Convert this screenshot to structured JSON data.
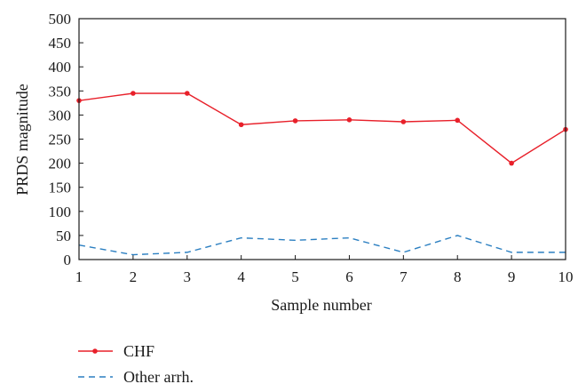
{
  "chart_data": {
    "type": "line",
    "x": [
      1,
      2,
      3,
      4,
      5,
      6,
      7,
      8,
      9,
      10
    ],
    "xlabel": "Sample number",
    "ylabel": "PRDS magnitude",
    "xlim": [
      1,
      10
    ],
    "ylim": [
      0,
      500
    ],
    "xticks": [
      "1",
      "2",
      "3",
      "4",
      "5",
      "6",
      "7",
      "8",
      "9",
      "10"
    ],
    "yticks": [
      "0",
      "50",
      "100",
      "150",
      "200",
      "250",
      "300",
      "350",
      "400",
      "450",
      "500"
    ],
    "grid": false,
    "legend_position": "bottom-left",
    "series": [
      {
        "name": "CHF",
        "values": [
          330,
          345,
          345,
          280,
          288,
          290,
          286,
          289,
          200,
          270
        ],
        "color": "#e8202a",
        "line_style": "solid",
        "marker": "circle"
      },
      {
        "name": "Other arrh.",
        "values": [
          30,
          10,
          15,
          45,
          40,
          45,
          15,
          50,
          15,
          15
        ],
        "color": "#2b7fc1",
        "line_style": "dashed",
        "marker": "none"
      }
    ]
  }
}
